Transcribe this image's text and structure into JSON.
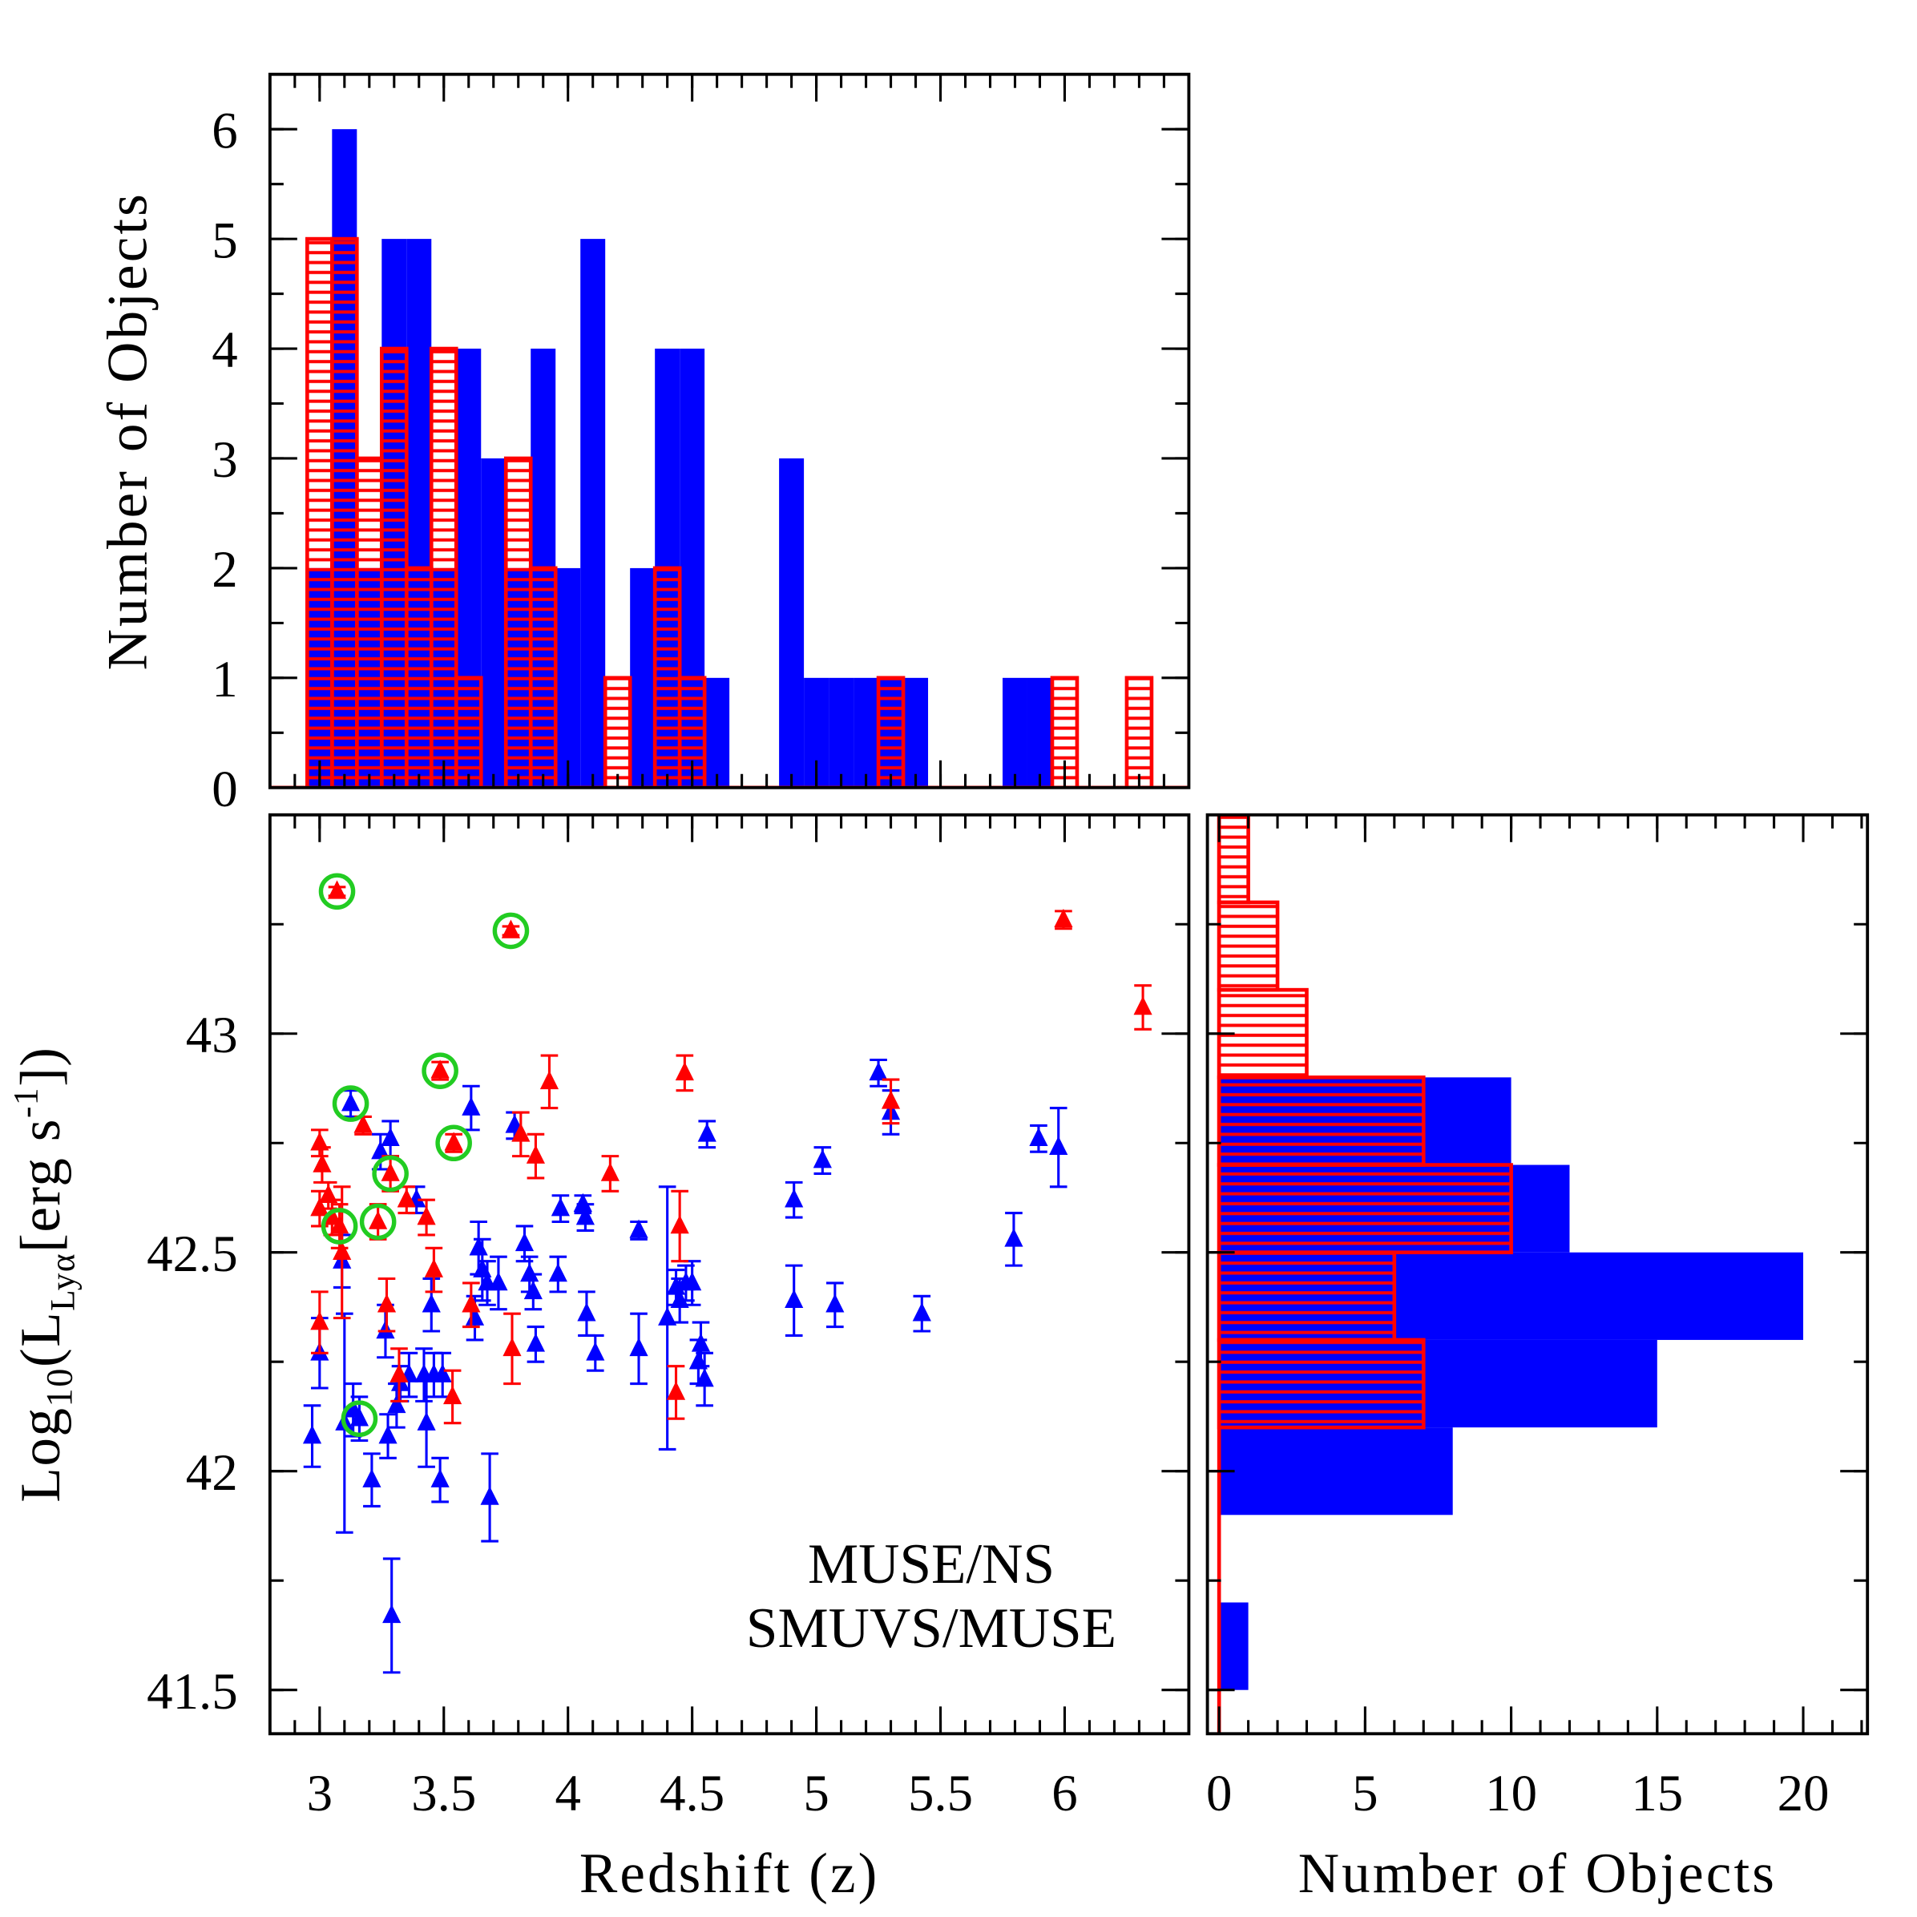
{
  "chart_data": [
    {
      "type": "histogram",
      "orientation": "vertical",
      "ylabel": "Number of Objects",
      "bins": [
        2.95,
        3.05,
        3.15,
        3.25,
        3.35,
        3.45,
        3.55,
        3.65,
        3.75,
        3.85,
        3.95,
        4.05,
        4.15,
        4.25,
        4.35,
        4.45,
        4.55,
        4.65,
        4.75,
        4.85,
        4.95,
        5.05,
        5.15,
        5.25,
        5.35,
        5.45,
        5.55,
        5.65,
        5.75,
        5.85,
        5.95,
        6.05,
        6.15,
        6.25,
        6.35
      ],
      "series": [
        {
          "color": "#0000ff",
          "hatch": false,
          "values": [
            2,
            6,
            2,
            5,
            5,
            2,
            4,
            3,
            2,
            4,
            2,
            5,
            0,
            2,
            4,
            4,
            1,
            0,
            0,
            3,
            1,
            1,
            1,
            1,
            1,
            0,
            0,
            0,
            1,
            1,
            0,
            0,
            0,
            0
          ]
        },
        {
          "color": "#ff0000",
          "hatch": true,
          "values": [
            5,
            5,
            3,
            4,
            2,
            4,
            1,
            0,
            3,
            2,
            0,
            0,
            1,
            0,
            2,
            1,
            0,
            0,
            0,
            0,
            0,
            0,
            0,
            1,
            0,
            0,
            0,
            0,
            0,
            0,
            1,
            0,
            0,
            1
          ]
        }
      ],
      "xlim": [
        2.8,
        6.5
      ],
      "xticks": [
        3,
        3.5,
        4,
        4.5,
        5,
        5.5,
        6
      ],
      "xticklabels": false,
      "xminor": 0.1,
      "ylim": [
        0,
        6.5
      ],
      "yticks": [
        0,
        1,
        2,
        3,
        4,
        5,
        6
      ],
      "yticklabels": true,
      "yminor": 0.5
    },
    {
      "type": "scatter",
      "xlabel": "Redshift (z)",
      "ylabel": [
        "Log",
        "10",
        "(L",
        "Lyα",
        "[erg  s",
        "-1",
        "])"
      ],
      "xlim": [
        2.8,
        6.5
      ],
      "xticks": [
        3,
        3.5,
        4,
        4.5,
        5,
        5.5,
        6
      ],
      "xticklabels": true,
      "xminor": 0.1,
      "ylim": [
        41.4,
        43.5
      ],
      "yticks": [
        41.5,
        42,
        42.5,
        43
      ],
      "yticklabels": true,
      "yminor": 0.25,
      "legend": "lower right",
      "series": [
        {
          "name": "MUSE/NS",
          "color": "#0000ff",
          "marker": "triangle",
          "x": [
            2.97,
            3.0,
            3.09,
            3.1,
            3.125,
            3.135,
            3.16,
            3.21,
            3.245,
            3.265,
            3.275,
            3.285,
            3.29,
            3.31,
            3.325,
            3.36,
            3.39,
            3.42,
            3.43,
            3.45,
            3.46,
            3.485,
            3.495,
            3.61,
            3.625,
            3.64,
            3.655,
            3.675,
            3.685,
            3.72,
            3.785,
            3.825,
            3.845,
            3.86,
            3.87,
            3.96,
            3.97,
            4.06,
            4.07,
            4.075,
            4.11,
            4.285,
            4.285,
            4.4,
            4.435,
            4.45,
            4.475,
            4.5,
            4.525,
            4.535,
            4.55,
            4.56,
            4.91,
            4.91,
            5.025,
            5.075,
            5.25,
            5.3,
            5.425,
            5.795,
            5.895,
            5.975
          ],
          "values": [
            42.08,
            42.27,
            42.48,
            42.11,
            42.84,
            42.14,
            42.12,
            41.98,
            42.73,
            42.32,
            42.08,
            42.76,
            41.67,
            42.15,
            42.2,
            42.22,
            42.62,
            42.22,
            42.11,
            42.38,
            42.22,
            41.98,
            42.22,
            42.83,
            42.35,
            42.51,
            42.46,
            42.43,
            41.94,
            42.43,
            42.79,
            42.52,
            42.45,
            42.41,
            42.29,
            42.45,
            42.6,
            42.61,
            42.58,
            42.36,
            42.27,
            42.55,
            42.28,
            42.35,
            42.42,
            42.39,
            42.43,
            42.43,
            42.25,
            42.29,
            42.21,
            42.77,
            42.62,
            42.39,
            42.71,
            42.38,
            42.91,
            42.82,
            42.36,
            42.53,
            42.76,
            42.74
          ],
          "errors": [
            0.07,
            0.08,
            0.06,
            0.25,
            0.03,
            0.06,
            0.05,
            0.06,
            0.04,
            0.06,
            0.05,
            0.04,
            0.13,
            0.05,
            0.04,
            0.05,
            0.03,
            0.06,
            0.1,
            0.06,
            0.05,
            0.05,
            0.05,
            0.05,
            0.05,
            0.06,
            0.07,
            0.05,
            0.1,
            0.06,
            0.03,
            0.04,
            0.04,
            0.04,
            0.04,
            0.04,
            0.03,
            0.02,
            0.03,
            0.05,
            0.04,
            0.02,
            0.08,
            0.3,
            0.04,
            0.05,
            0.04,
            0.05,
            0.05,
            0.05,
            0.06,
            0.03,
            0.04,
            0.08,
            0.03,
            0.05,
            0.03,
            0.05,
            0.04,
            0.06,
            0.03,
            0.09
          ]
        },
        {
          "name": "SMUVS/MUSE",
          "color": "#ff0000",
          "marker": "triangle",
          "x": [
            3.0,
            3.0,
            3.01,
            3.0,
            3.035,
            3.05,
            3.07,
            3.08,
            3.09,
            3.175,
            3.235,
            3.27,
            3.285,
            3.32,
            3.35,
            3.43,
            3.46,
            3.485,
            3.535,
            3.54,
            3.61,
            3.77,
            3.775,
            3.81,
            3.87,
            3.925,
            4.17,
            4.435,
            4.45,
            4.47,
            5.3,
            5.995,
            6.315
          ],
          "values": [
            42.75,
            42.6,
            42.7,
            42.34,
            42.63,
            42.58,
            43.325,
            42.56,
            42.5,
            42.79,
            42.57,
            42.38,
            42.68,
            42.22,
            42.62,
            42.58,
            42.46,
            42.915,
            42.17,
            42.75,
            42.38,
            43.235,
            42.28,
            42.77,
            42.72,
            42.89,
            42.68,
            42.18,
            42.56,
            42.91,
            42.845,
            43.26,
            43.06
          ],
          "errors": [
            0.03,
            0.04,
            0.04,
            0.07,
            0.03,
            0.04,
            0.01,
            0.05,
            0.15,
            0.02,
            0.04,
            0.06,
            0.04,
            0.06,
            0.03,
            0.04,
            0.05,
            0.02,
            0.06,
            0.02,
            0.05,
            0.01,
            0.08,
            0.05,
            0.05,
            0.06,
            0.04,
            0.06,
            0.08,
            0.04,
            0.05,
            0.02,
            0.05
          ]
        },
        {
          "color": "#22cc22",
          "marker": "ring",
          "x": [
            3.07,
            3.77,
            3.485,
            3.54,
            3.285,
            3.235,
            3.08,
            3.125,
            3.16
          ],
          "values": [
            43.325,
            43.235,
            42.915,
            42.75,
            42.68,
            42.57,
            42.56,
            42.84,
            42.12
          ]
        }
      ]
    },
    {
      "type": "histogram",
      "orientation": "horizontal",
      "xlabel": "Number of Objects",
      "bins": [
        41.5,
        41.7,
        41.9,
        42.1,
        42.3,
        42.5,
        42.7,
        42.9,
        43.1,
        43.3,
        43.5
      ],
      "series": [
        {
          "color": "#0000ff",
          "hatch": false,
          "values": [
            1,
            0,
            8,
            15,
            20,
            12,
            10,
            0,
            0,
            0
          ]
        },
        {
          "color": "#ff0000",
          "hatch": true,
          "values": [
            0,
            0,
            0,
            7,
            6,
            10,
            7,
            3,
            2,
            1
          ]
        }
      ],
      "xlim": [
        -0.4,
        22.2
      ],
      "xticks": [
        0,
        5,
        10,
        15,
        20
      ],
      "xticklabels": true,
      "xminor": 1,
      "ylim": [
        41.4,
        43.5
      ],
      "yticks": [
        41.5,
        42,
        42.5,
        43
      ],
      "yticklabels": false,
      "yminor": 0.25
    }
  ]
}
